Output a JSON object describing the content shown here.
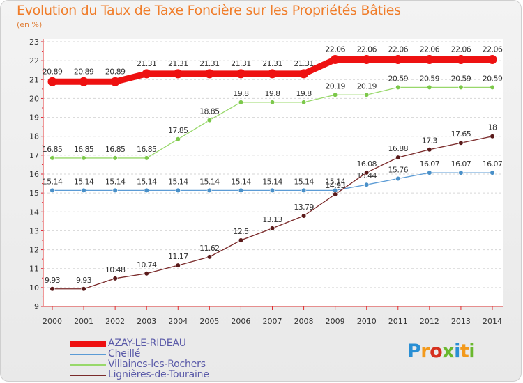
{
  "title": "Evolution du Taux de Taxe Foncière sur les Propriétés Bâties",
  "subtitle": "(en %)",
  "logo": {
    "text": "Proxiti",
    "colors": [
      "#2a8fd4",
      "#f39a1c",
      "#d6311f",
      "#6ab82e",
      "#2a8fd4",
      "#f39a1c",
      "#6ab82e"
    ]
  },
  "chart_data": {
    "type": "line",
    "title": "Evolution du Taux de Taxe Foncière sur les Propriétés Bâties",
    "ylabel": "(en %)",
    "xlabel": "",
    "ylim": [
      9,
      23
    ],
    "yticks": [
      9,
      10,
      11,
      12,
      13,
      14,
      15,
      16,
      17,
      18,
      19,
      20,
      21,
      22,
      23
    ],
    "categories": [
      "2000",
      "2001",
      "2002",
      "2003",
      "2004",
      "2005",
      "2006",
      "2007",
      "2008",
      "2009",
      "2010",
      "2011",
      "2012",
      "2013",
      "2014"
    ],
    "grid": "horizontal",
    "legend_position": "bottom-left",
    "series": [
      {
        "name": "AZAY-LE-RIDEAU",
        "color": "#ee1111",
        "emphasis": true,
        "values": [
          20.89,
          20.89,
          20.89,
          21.31,
          21.31,
          21.31,
          21.31,
          21.31,
          21.31,
          22.06,
          22.06,
          22.06,
          22.06,
          22.06,
          22.06
        ],
        "labels": [
          "20.89",
          "20.89",
          "20.89",
          "21.31",
          "21.31",
          "21.31",
          "21.31",
          "21.31",
          "21.31",
          "22.06",
          "22.06",
          "22.06",
          "22.06",
          "22.06",
          "22.06"
        ]
      },
      {
        "name": "Cheillé",
        "color": "#5b9bd5",
        "dot": "#4a90c8",
        "values": [
          15.14,
          15.14,
          15.14,
          15.14,
          15.14,
          15.14,
          15.14,
          15.14,
          15.14,
          15.14,
          15.44,
          15.76,
          16.07,
          16.07,
          16.07
        ],
        "labels": [
          "15.14",
          "15.14",
          "15.14",
          "15.14",
          "15.14",
          "15.14",
          "15.14",
          "15.14",
          "15.14",
          "15.14",
          "15.44",
          "15.76",
          "16.07",
          "16.07",
          "16.07"
        ]
      },
      {
        "name": "Villaines-les-Rochers",
        "color": "#98d86a",
        "dot": "#7cc84a",
        "values": [
          16.85,
          16.85,
          16.85,
          16.85,
          17.85,
          18.85,
          19.8,
          19.8,
          19.8,
          20.19,
          20.19,
          20.59,
          20.59,
          20.59,
          20.59
        ],
        "labels": [
          "16.85",
          "16.85",
          "16.85",
          "16.85",
          "17.85",
          "18.85",
          "19.8",
          "19.8",
          "19.8",
          "20.19",
          "20.19",
          "20.59",
          "20.59",
          "20.59",
          "20.59"
        ]
      },
      {
        "name": "Lignières-de-Touraine",
        "color": "#7a2a2a",
        "dot": "#5a1a1a",
        "values": [
          9.93,
          9.93,
          10.48,
          10.74,
          11.17,
          11.62,
          12.5,
          13.13,
          13.79,
          14.93,
          16.08,
          16.88,
          17.3,
          17.65,
          18
        ],
        "labels": [
          "9.93",
          "9.93",
          "10.48",
          "10.74",
          "11.17",
          "11.62",
          "12.5",
          "13.13",
          "13.79",
          "14.93",
          "16.08",
          "16.88",
          "17.3",
          "17.65",
          "18"
        ]
      }
    ]
  }
}
